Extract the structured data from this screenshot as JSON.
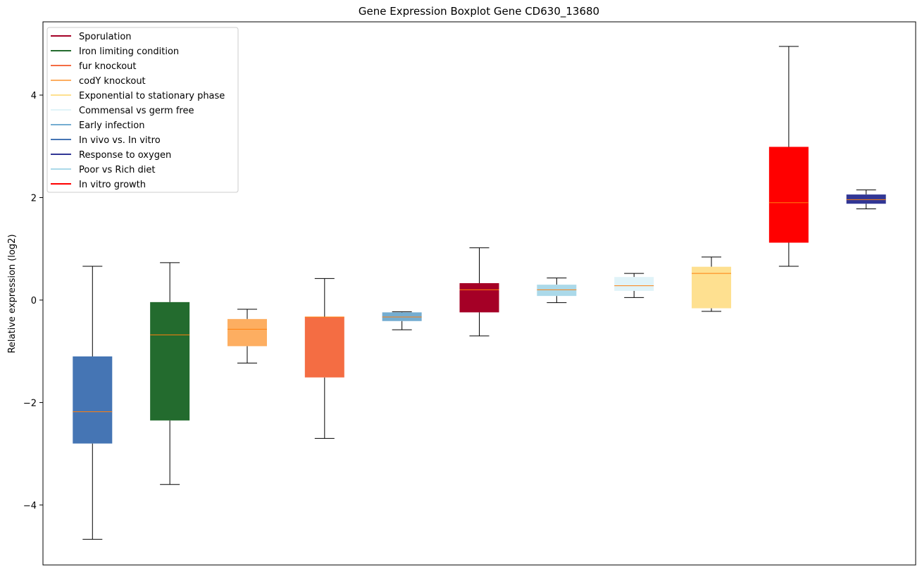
{
  "chart_data": {
    "type": "boxplot",
    "title": "Gene Expression Boxplot Gene CD630_13680",
    "xlabel": "",
    "ylabel": "Relative expression (log2)",
    "ylim": [
      -5.17,
      5.43
    ],
    "yticks": [
      -4,
      -2,
      0,
      2,
      4
    ],
    "ytick_labels": [
      "−4",
      "−2",
      "0",
      "2",
      "4"
    ],
    "median_color": "#ff7f0e",
    "legend": {
      "placement": "top-left",
      "entries": [
        {
          "label": "Sporulation",
          "color": "#a50026"
        },
        {
          "label": "Iron limiting condition",
          "color": "#236b2e"
        },
        {
          "label": "fur knockout",
          "color": "#f46d43"
        },
        {
          "label": "codY knockout",
          "color": "#fdae61"
        },
        {
          "label": "Exponential to stationary phase",
          "color": "#fee090"
        },
        {
          "label": "Commensal vs germ free",
          "color": "#e0f3f8"
        },
        {
          "label": "Early infection",
          "color": "#74add1"
        },
        {
          "label": "In vivo vs. In vitro",
          "color": "#4575b4"
        },
        {
          "label": "Response to oxygen",
          "color": "#313695"
        },
        {
          "label": "Poor vs Rich diet",
          "color": "#abd9e9"
        },
        {
          "label": "In vitro growth",
          "color": "#ff0000"
        }
      ]
    },
    "boxes": [
      {
        "group": "In vivo vs. In vitro",
        "color": "#4575b4",
        "whisker_low": -4.67,
        "q1": -2.8,
        "median": -2.18,
        "q3": -1.1,
        "whisker_high": 0.66
      },
      {
        "group": "Iron limiting condition",
        "color": "#236b2e",
        "whisker_low": -3.6,
        "q1": -2.35,
        "median": -0.68,
        "q3": -0.04,
        "whisker_high": 0.73
      },
      {
        "group": "codY knockout",
        "color": "#fdae61",
        "whisker_low": -1.23,
        "q1": -0.9,
        "median": -0.57,
        "q3": -0.37,
        "whisker_high": -0.18
      },
      {
        "group": "fur knockout",
        "color": "#f46d43",
        "whisker_low": -2.7,
        "q1": -1.51,
        "median": -0.33,
        "q3": -0.33,
        "whisker_high": 0.42
      },
      {
        "group": "Early infection",
        "color": "#74add1",
        "whisker_low": -0.58,
        "q1": -0.41,
        "median": -0.33,
        "q3": -0.24,
        "whisker_high": -0.23
      },
      {
        "group": "Sporulation",
        "color": "#a50026",
        "whisker_low": -0.7,
        "q1": -0.24,
        "median": 0.2,
        "q3": 0.33,
        "whisker_high": 1.02
      },
      {
        "group": "Poor vs Rich diet",
        "color": "#abd9e9",
        "whisker_low": -0.05,
        "q1": 0.08,
        "median": 0.2,
        "q3": 0.3,
        "whisker_high": 0.43
      },
      {
        "group": "Commensal vs germ free",
        "color": "#e0f3f8",
        "whisker_low": 0.05,
        "q1": 0.18,
        "median": 0.28,
        "q3": 0.45,
        "whisker_high": 0.52
      },
      {
        "group": "Exponential to stationary phase",
        "color": "#fee090",
        "whisker_low": -0.22,
        "q1": -0.16,
        "median": 0.52,
        "q3": 0.65,
        "whisker_high": 0.84
      },
      {
        "group": "In vitro growth",
        "color": "#ff0000",
        "whisker_low": 0.66,
        "q1": 1.12,
        "median": 1.9,
        "q3": 2.99,
        "whisker_high": 4.95
      },
      {
        "group": "Response to oxygen",
        "color": "#313695",
        "whisker_low": 1.78,
        "q1": 1.88,
        "median": 1.96,
        "q3": 2.06,
        "whisker_high": 2.15
      }
    ]
  }
}
